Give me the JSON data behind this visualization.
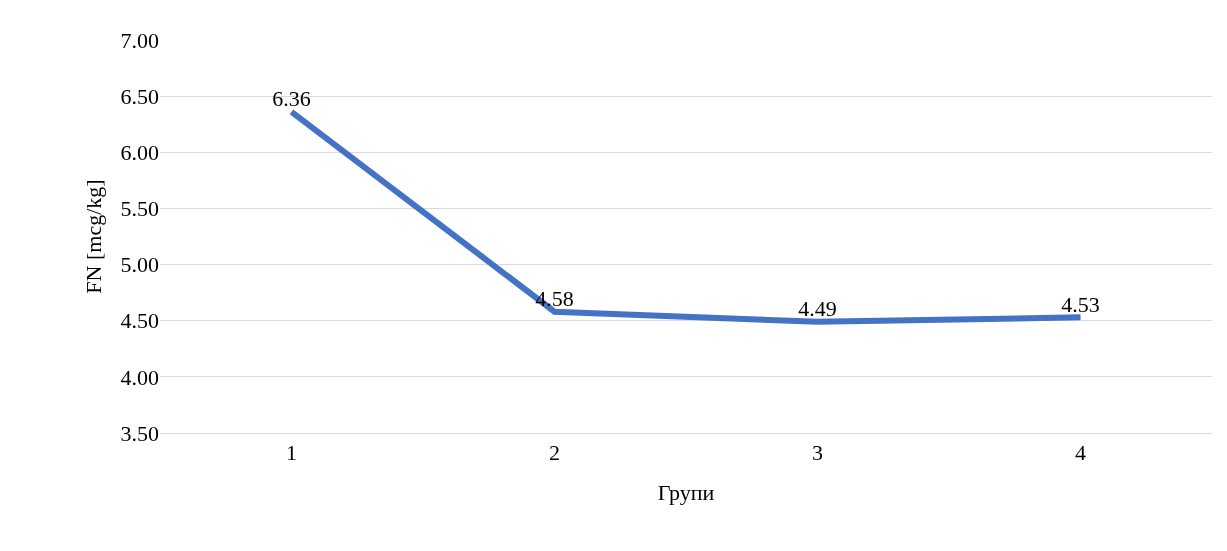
{
  "chart_data": {
    "type": "line",
    "xlabel": "Групи",
    "ylabel": "FN [mcg/kg]",
    "categories": [
      "1",
      "2",
      "3",
      "4"
    ],
    "values": [
      6.36,
      4.58,
      4.49,
      4.53
    ],
    "color": "#4472c4",
    "data_labels": true,
    "grid": "y",
    "ylim": [
      3.5,
      7
    ],
    "yticks": [
      {
        "value": 3.5,
        "label": "3.50"
      },
      {
        "value": 4,
        "label": "4.00"
      },
      {
        "value": 4.5,
        "label": "4.50"
      },
      {
        "value": 5,
        "label": "5.00"
      },
      {
        "value": 5.5,
        "label": "5.50"
      },
      {
        "value": 6,
        "label": "6.00"
      },
      {
        "value": 6.5,
        "label": "6.50"
      },
      {
        "value": 7,
        "label": "7.00"
      }
    ]
  }
}
